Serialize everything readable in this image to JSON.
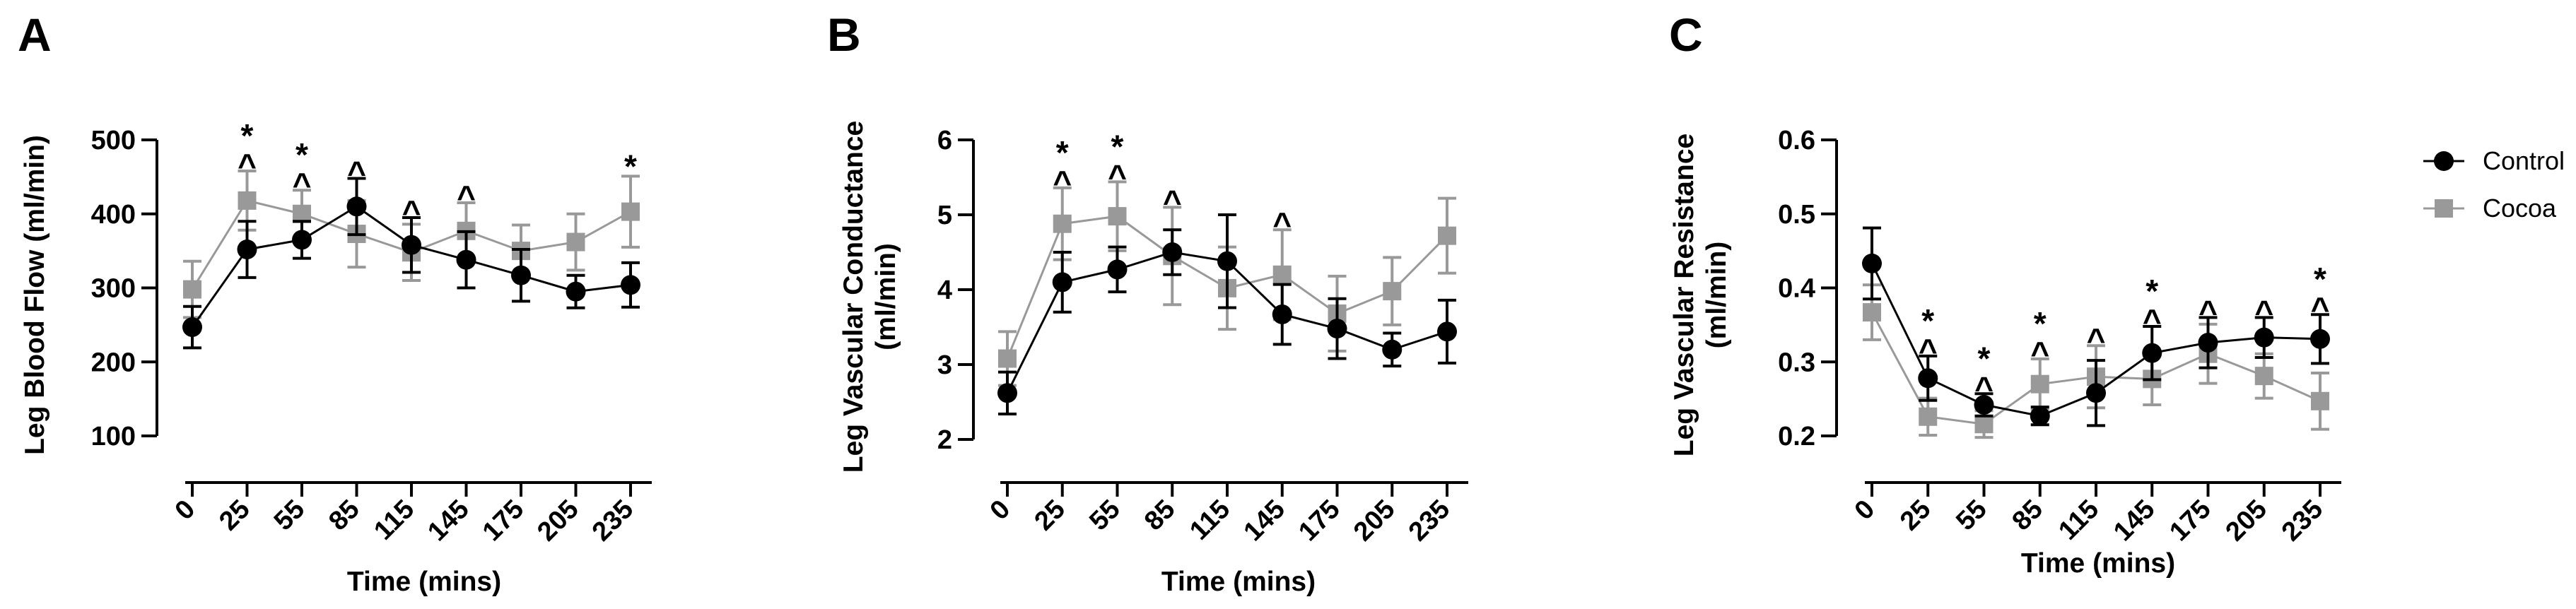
{
  "series_styles": {
    "Control": {
      "color": "#000000",
      "marker": "circle"
    },
    "Cocoa": {
      "color": "#999999",
      "marker": "square"
    }
  },
  "legend": {
    "entries": [
      {
        "name": "Control",
        "color": "#000000",
        "marker": "circle"
      },
      {
        "name": "Cocoa",
        "color": "#999999",
        "marker": "square"
      }
    ]
  },
  "chart_data": [
    {
      "panel": "A",
      "type": "line",
      "xlabel": "Time (mins)",
      "ylabel": "Leg Blood Flow (ml/min)",
      "x": [
        0,
        25,
        55,
        85,
        115,
        145,
        175,
        205,
        235
      ],
      "x_tick_labels": [
        "0",
        "25",
        "55",
        "85",
        "115",
        "145",
        "175",
        "205",
        "235"
      ],
      "ylim": [
        100,
        500
      ],
      "y_ticks": [
        100,
        200,
        300,
        400,
        500
      ],
      "y_tick_labels": [
        "100",
        "200",
        "300",
        "400",
        "500"
      ],
      "series": [
        {
          "name": "Control",
          "values": [
            247,
            352,
            365,
            410,
            358,
            338,
            317,
            295,
            304
          ],
          "errors": [
            28,
            38,
            25,
            38,
            37,
            38,
            35,
            22,
            30
          ]
        },
        {
          "name": "Cocoa",
          "values": [
            298,
            418,
            400,
            373,
            348,
            377,
            350,
            362,
            403
          ],
          "errors": [
            38,
            40,
            32,
            45,
            38,
            38,
            35,
            38,
            48
          ]
        }
      ],
      "significance": [
        {
          "x": 25,
          "symbols": [
            "*",
            "^"
          ]
        },
        {
          "x": 55,
          "symbols": [
            "*",
            "^"
          ]
        },
        {
          "x": 85,
          "symbols": [
            "^"
          ]
        },
        {
          "x": 115,
          "symbols": [
            "^"
          ]
        },
        {
          "x": 145,
          "symbols": [
            "^"
          ]
        },
        {
          "x": 235,
          "symbols": [
            "*"
          ]
        }
      ]
    },
    {
      "panel": "B",
      "type": "line",
      "xlabel": "Time (mins)",
      "ylabel": "Leg Vascular Conductance (ml/min)",
      "x": [
        0,
        25,
        55,
        85,
        115,
        145,
        175,
        205,
        235
      ],
      "x_tick_labels": [
        "0",
        "25",
        "55",
        "85",
        "115",
        "145",
        "175",
        "205",
        "235"
      ],
      "ylim": [
        2,
        6
      ],
      "y_ticks": [
        2,
        3,
        4,
        5,
        6
      ],
      "y_tick_labels": [
        "2",
        "3",
        "4",
        "5",
        "6"
      ],
      "series": [
        {
          "name": "Control",
          "values": [
            2.62,
            4.1,
            4.27,
            4.5,
            4.38,
            3.67,
            3.48,
            3.2,
            3.44
          ],
          "errors": [
            0.28,
            0.4,
            0.3,
            0.3,
            0.62,
            0.4,
            0.4,
            0.22,
            0.42
          ]
        },
        {
          "name": "Cocoa",
          "values": [
            3.08,
            4.88,
            4.98,
            4.45,
            4.02,
            4.2,
            3.68,
            3.98,
            4.72
          ],
          "errors": [
            0.36,
            0.48,
            0.46,
            0.65,
            0.55,
            0.6,
            0.5,
            0.45,
            0.5
          ]
        }
      ],
      "significance": [
        {
          "x": 25,
          "symbols": [
            "*",
            "^"
          ]
        },
        {
          "x": 55,
          "symbols": [
            "*",
            "^"
          ]
        },
        {
          "x": 85,
          "symbols": [
            "^"
          ]
        },
        {
          "x": 145,
          "symbols": [
            "^"
          ]
        }
      ]
    },
    {
      "panel": "C",
      "type": "line",
      "xlabel": "Time (mins)",
      "ylabel": "Leg Vascular Resistance (ml/min)",
      "x": [
        0,
        25,
        55,
        85,
        115,
        145,
        175,
        205,
        235
      ],
      "x_tick_labels": [
        "0",
        "25",
        "55",
        "85",
        "115",
        "145",
        "175",
        "205",
        "235"
      ],
      "ylim": [
        0.2,
        0.6
      ],
      "y_ticks": [
        0.2,
        0.3,
        0.4,
        0.5,
        0.6
      ],
      "y_tick_labels": [
        "0.2",
        "0.3",
        "0.4",
        "0.5",
        "0.6"
      ],
      "series": [
        {
          "name": "Control",
          "values": [
            0.433,
            0.278,
            0.242,
            0.227,
            0.258,
            0.312,
            0.326,
            0.333,
            0.331
          ],
          "errors": [
            0.048,
            0.03,
            0.015,
            0.012,
            0.044,
            0.036,
            0.034,
            0.027,
            0.033
          ]
        },
        {
          "name": "Cocoa",
          "values": [
            0.367,
            0.226,
            0.216,
            0.27,
            0.28,
            0.277,
            0.311,
            0.281,
            0.247
          ],
          "errors": [
            0.037,
            0.025,
            0.018,
            0.034,
            0.042,
            0.035,
            0.04,
            0.03,
            0.038
          ]
        }
      ],
      "significance": [
        {
          "x": 25,
          "symbols": [
            "*",
            "^"
          ]
        },
        {
          "x": 55,
          "symbols": [
            "*",
            "^"
          ]
        },
        {
          "x": 85,
          "symbols": [
            "*",
            "^"
          ]
        },
        {
          "x": 115,
          "symbols": [
            "^"
          ]
        },
        {
          "x": 145,
          "symbols": [
            "*",
            "^"
          ]
        },
        {
          "x": 175,
          "symbols": [
            "^"
          ]
        },
        {
          "x": 205,
          "symbols": [
            "^"
          ]
        },
        {
          "x": 235,
          "symbols": [
            "*",
            "^"
          ]
        }
      ]
    }
  ]
}
